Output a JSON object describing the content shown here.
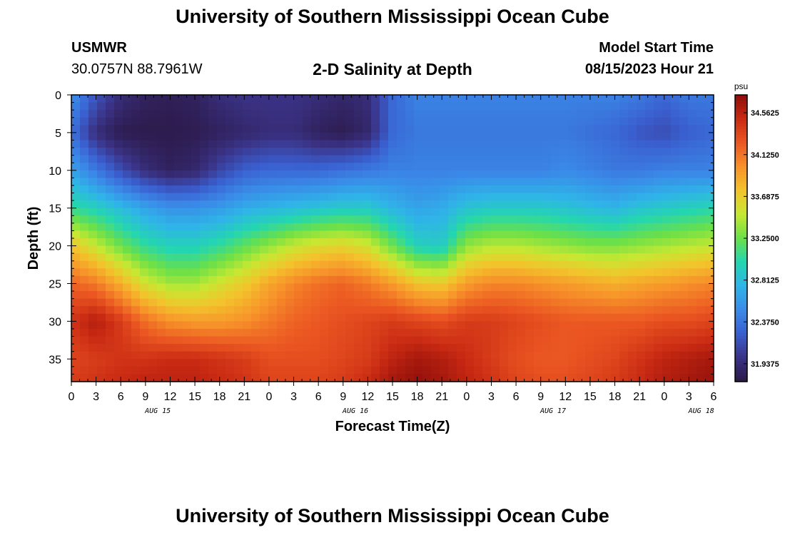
{
  "header": {
    "title": "University of Southern Mississippi Ocean Cube",
    "station": "USMWR",
    "coords": "30.0757N  88.7961W",
    "plot_title": "2-D Salinity at Depth",
    "model_label": "Model Start Time",
    "model_time": "08/15/2023 Hour 21"
  },
  "footer": {
    "title": "University of Southern Mississippi Ocean Cube"
  },
  "chart_data": {
    "type": "heatmap",
    "title": "2-D Salinity at Depth",
    "xlabel": "Forecast Time(Z)",
    "ylabel": "Depth (ft)",
    "x_tick_labels": [
      "0",
      "3",
      "6",
      "9",
      "12",
      "15",
      "18",
      "21",
      "0",
      "3",
      "6",
      "9",
      "12",
      "15",
      "18",
      "21",
      "0",
      "3",
      "6",
      "9",
      "12",
      "15",
      "18",
      "21",
      "0",
      "3",
      "6"
    ],
    "date_labels": [
      {
        "label": "AUG 15",
        "tick_index": 3.5
      },
      {
        "label": "AUG 16",
        "tick_index": 11.5
      },
      {
        "label": "AUG 17",
        "tick_index": 19.5
      },
      {
        "label": "AUG 18",
        "tick_index": 25.5
      }
    ],
    "y_ticks": [
      0,
      5,
      10,
      15,
      20,
      25,
      30,
      35
    ],
    "ylim": [
      0,
      38
    ],
    "xlim_hours": [
      0,
      78
    ],
    "colorbar": {
      "unit": "psu",
      "min": 31.75,
      "max": 34.75,
      "tick_labels": [
        "34.5625",
        "34.1250",
        "33.6875",
        "33.2500",
        "32.8125",
        "32.3750",
        "31.9375"
      ],
      "tick_values": [
        34.5625,
        34.125,
        33.6875,
        33.25,
        32.8125,
        32.375,
        31.9375
      ],
      "colormap": [
        "#2b1845",
        "#3a3285",
        "#3a5fcf",
        "#3a8ae8",
        "#2fb4e8",
        "#24d6b0",
        "#6be048",
        "#c7e832",
        "#f3c32c",
        "#f7922a",
        "#eb5722",
        "#c92a13",
        "#8d0d09"
      ]
    },
    "series": [
      {
        "depth": 0,
        "values": [
          32.55,
          32.2,
          31.95,
          31.85,
          31.82,
          31.85,
          31.95,
          32.0,
          32.0,
          32.0,
          31.95,
          31.9,
          31.95,
          32.3,
          32.45,
          32.45,
          32.45,
          32.45,
          32.45,
          32.45,
          32.45,
          32.45,
          32.45,
          32.4,
          32.3,
          32.4,
          32.4
        ]
      },
      {
        "depth": 5,
        "values": [
          32.35,
          31.95,
          31.8,
          31.78,
          31.78,
          31.8,
          31.85,
          31.9,
          31.95,
          31.95,
          31.85,
          31.8,
          31.9,
          32.3,
          32.4,
          32.4,
          32.4,
          32.4,
          32.4,
          32.4,
          32.4,
          32.35,
          32.3,
          32.2,
          32.15,
          32.25,
          32.3
        ]
      },
      {
        "depth": 10,
        "values": [
          32.65,
          32.4,
          32.15,
          31.95,
          31.85,
          31.9,
          32.1,
          32.25,
          32.3,
          32.3,
          32.3,
          32.35,
          32.4,
          32.45,
          32.45,
          32.45,
          32.45,
          32.45,
          32.45,
          32.45,
          32.5,
          32.45,
          32.4,
          32.4,
          32.45,
          32.45,
          32.45
        ]
      },
      {
        "depth": 15,
        "values": [
          33.05,
          32.95,
          32.8,
          32.65,
          32.55,
          32.55,
          32.6,
          32.7,
          32.75,
          32.8,
          32.85,
          32.9,
          32.9,
          32.75,
          32.65,
          32.7,
          32.85,
          32.9,
          32.9,
          32.9,
          32.85,
          32.8,
          32.75,
          32.85,
          32.9,
          32.95,
          33.0
        ]
      },
      {
        "depth": 20,
        "values": [
          33.75,
          33.5,
          33.25,
          33.05,
          32.95,
          32.95,
          33.05,
          33.2,
          33.35,
          33.5,
          33.6,
          33.65,
          33.55,
          33.25,
          32.95,
          32.9,
          33.35,
          33.45,
          33.45,
          33.4,
          33.35,
          33.3,
          33.3,
          33.35,
          33.4,
          33.45,
          33.5
        ]
      },
      {
        "depth": 25,
        "values": [
          34.2,
          34.1,
          33.85,
          33.55,
          33.4,
          33.4,
          33.55,
          33.7,
          33.9,
          34.05,
          34.15,
          34.2,
          34.1,
          33.95,
          33.75,
          33.7,
          33.95,
          34.05,
          34.05,
          34.0,
          33.95,
          33.9,
          33.85,
          33.9,
          33.95,
          34.0,
          34.05
        ]
      },
      {
        "depth": 30,
        "values": [
          34.45,
          34.6,
          34.4,
          34.15,
          34.0,
          33.95,
          33.95,
          34.0,
          34.1,
          34.2,
          34.25,
          34.3,
          34.35,
          34.4,
          34.35,
          34.3,
          34.4,
          34.4,
          34.35,
          34.3,
          34.25,
          34.25,
          34.25,
          34.25,
          34.3,
          34.3,
          34.35
        ]
      },
      {
        "depth": 35,
        "values": [
          34.35,
          34.4,
          34.45,
          34.45,
          34.5,
          34.5,
          34.45,
          34.4,
          34.3,
          34.3,
          34.3,
          34.35,
          34.4,
          34.55,
          34.65,
          34.6,
          34.5,
          34.4,
          34.3,
          34.25,
          34.25,
          34.3,
          34.35,
          34.45,
          34.55,
          34.6,
          34.65
        ]
      },
      {
        "depth": 38,
        "values": [
          34.4,
          34.45,
          34.5,
          34.55,
          34.55,
          34.55,
          34.5,
          34.45,
          34.35,
          34.35,
          34.35,
          34.4,
          34.5,
          34.65,
          34.72,
          34.65,
          34.55,
          34.45,
          34.35,
          34.3,
          34.3,
          34.35,
          34.4,
          34.5,
          34.6,
          34.65,
          34.7
        ]
      }
    ]
  }
}
